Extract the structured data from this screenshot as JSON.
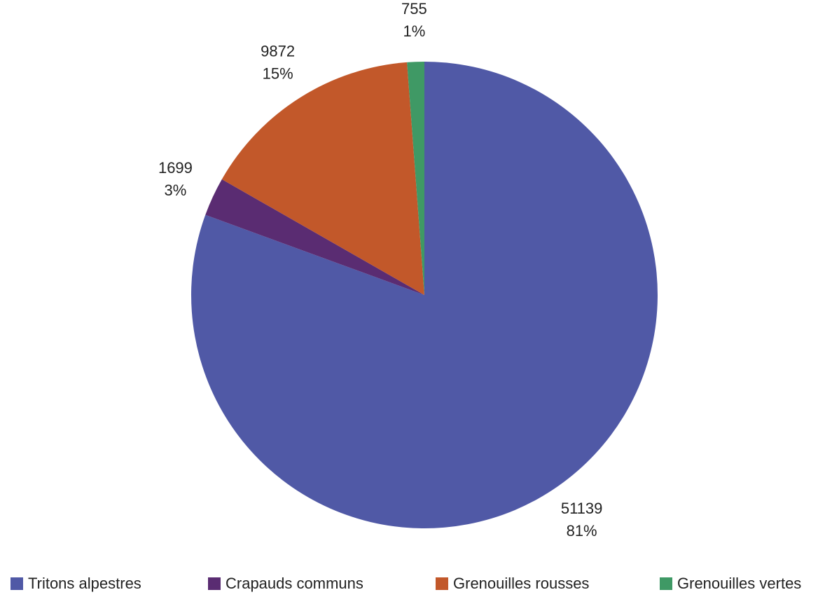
{
  "chart_data": {
    "type": "pie",
    "categories": [
      "Tritons alpestres",
      "Crapauds communs",
      "Grenouilles rousses",
      "Grenouilles vertes"
    ],
    "values": [
      51139,
      1699,
      9872,
      755
    ],
    "percent_labels": [
      "81%",
      "3%",
      "15%",
      "1%"
    ],
    "colors": [
      "#5059a6",
      "#5a2c72",
      "#c2582a",
      "#3f9965"
    ],
    "legend": "bottom"
  }
}
